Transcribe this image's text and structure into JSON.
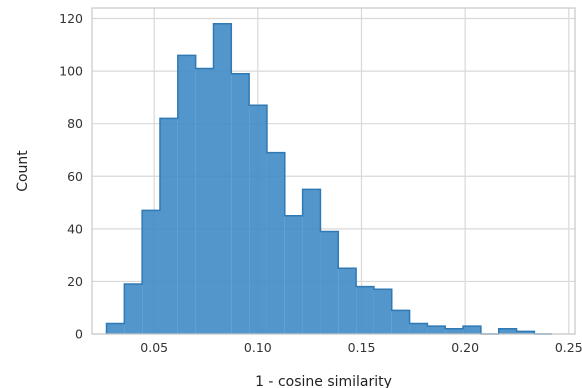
{
  "chart_data": {
    "type": "histogram",
    "title": "",
    "xlabel": "1 - cosine similarity",
    "ylabel": "Count",
    "xlim": [
      0.02,
      0.253
    ],
    "ylim": [
      0,
      124
    ],
    "xticks": [
      0.05,
      0.1,
      0.15,
      0.2,
      0.25
    ],
    "xtick_labels": [
      "0.05",
      "0.10",
      "0.15",
      "0.20",
      "0.25"
    ],
    "yticks": [
      0,
      20,
      40,
      60,
      80,
      100,
      120
    ],
    "ytick_labels": [
      "0",
      "20",
      "40",
      "60",
      "80",
      "100",
      "120"
    ],
    "grid": true,
    "bin_edges": [
      0.027,
      0.0356,
      0.0442,
      0.0528,
      0.0614,
      0.07,
      0.0786,
      0.0872,
      0.0958,
      0.1044,
      0.113,
      0.1216,
      0.1302,
      0.1388,
      0.1474,
      0.156,
      0.1646,
      0.1732,
      0.1818,
      0.1904,
      0.199,
      0.2076,
      0.2162,
      0.2248,
      0.2334,
      0.242
    ],
    "counts": [
      4,
      19,
      47,
      82,
      106,
      101,
      118,
      99,
      87,
      69,
      45,
      55,
      39,
      25,
      18,
      17,
      9,
      4,
      3,
      2,
      3,
      0,
      2,
      1,
      0
    ],
    "colors": {
      "fill": "#3f8bc6",
      "edge": "#2f79b5",
      "grid": "#d9d9d9",
      "frame": "#c7c7c7"
    }
  }
}
